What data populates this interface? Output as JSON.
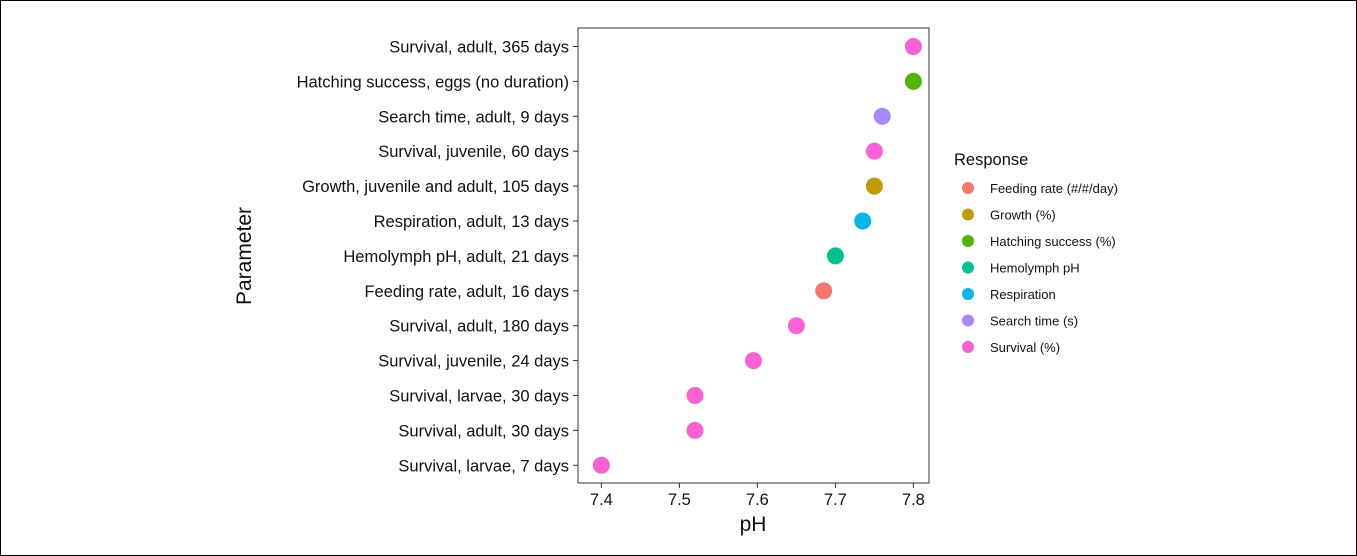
{
  "chart_data": {
    "type": "scatter",
    "xlabel": "pH",
    "ylabel": "Parameter",
    "xlim": [
      7.37,
      7.82
    ],
    "x_ticks": [
      7.4,
      7.5,
      7.6,
      7.7,
      7.8
    ],
    "x_tick_labels": [
      "7.4",
      "7.5",
      "7.6",
      "7.7",
      "7.8"
    ],
    "grid": false,
    "legend": {
      "title": "Response",
      "placement": "right",
      "items": [
        {
          "label": "Feeding rate (#/#/day)",
          "color": "#F8766D"
        },
        {
          "label": "Growth (%)",
          "color": "#C49A00"
        },
        {
          "label": "Hatching success (%)",
          "color": "#53B400"
        },
        {
          "label": "Hemolymph pH",
          "color": "#00C094"
        },
        {
          "label": "Respiration",
          "color": "#00B6EB"
        },
        {
          "label": "Search time (s)",
          "color": "#A58AFF"
        },
        {
          "label": "Survival (%)",
          "color": "#FB61D7"
        }
      ]
    },
    "points": [
      {
        "category": "Survival, adult, 365 days",
        "x": 7.8,
        "response": "Survival (%)"
      },
      {
        "category": "Hatching success, eggs (no duration)",
        "x": 7.8,
        "response": "Hatching success (%)"
      },
      {
        "category": "Search time, adult, 9 days",
        "x": 7.76,
        "response": "Search time (s)"
      },
      {
        "category": "Survival, juvenile, 60 days",
        "x": 7.75,
        "response": "Survival (%)"
      },
      {
        "category": "Growth, juvenile and adult, 105 days",
        "x": 7.75,
        "response": "Growth (%)"
      },
      {
        "category": "Respiration, adult, 13 days",
        "x": 7.735,
        "response": "Respiration"
      },
      {
        "category": "Hemolymph pH, adult, 21 days",
        "x": 7.7,
        "response": "Hemolymph pH"
      },
      {
        "category": "Feeding rate, adult, 16 days",
        "x": 7.685,
        "response": "Feeding rate (#/#/day)"
      },
      {
        "category": "Survival, adult, 180 days",
        "x": 7.65,
        "response": "Survival (%)"
      },
      {
        "category": "Survival, juvenile, 24 days",
        "x": 7.595,
        "response": "Survival (%)"
      },
      {
        "category": "Survival, larvae, 30 days",
        "x": 7.52,
        "response": "Survival (%)"
      },
      {
        "category": "Survival, adult, 30 days",
        "x": 7.52,
        "response": "Survival (%)"
      },
      {
        "category": "Survival, larvae, 7 days",
        "x": 7.4,
        "response": "Survival (%)"
      }
    ]
  }
}
